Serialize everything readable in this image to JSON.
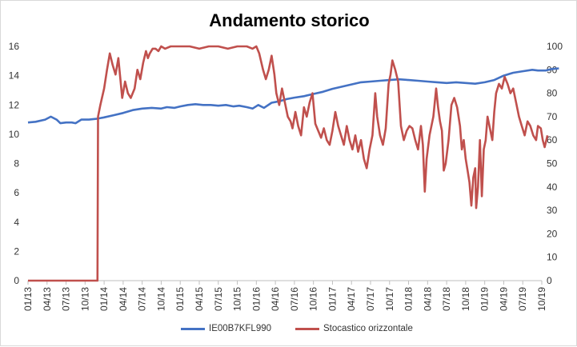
{
  "chart_data": {
    "type": "line",
    "title": "Andamento storico",
    "x": [
      "01/13",
      "04/13",
      "07/13",
      "10/13",
      "01/14",
      "04/14",
      "07/14",
      "10/14",
      "01/15",
      "04/15",
      "07/15",
      "10/15",
      "01/16",
      "04/16",
      "07/16",
      "10/16",
      "01/17",
      "04/17",
      "07/17",
      "10/17",
      "01/18",
      "04/18",
      "07/18",
      "10/18",
      "01/19",
      "04/19",
      "07/19",
      "10/19"
    ],
    "y_left_lim": [
      0,
      16
    ],
    "y_left_ticks": [
      "0",
      "2",
      "4",
      "6",
      "8",
      "10",
      "12",
      "14",
      "16"
    ],
    "y_right_lim": [
      0,
      100
    ],
    "y_right_ticks": [
      "0",
      "10",
      "20",
      "30",
      "40",
      "50",
      "60",
      "70",
      "80",
      "90",
      "100"
    ],
    "grid": false,
    "legend_position": "bottom",
    "series": [
      {
        "name": "IE00B7KFL990",
        "axis": "left",
        "color": "#4472c4",
        "points": [
          [
            0,
            10.8
          ],
          [
            0.4,
            10.85
          ],
          [
            0.9,
            11.0
          ],
          [
            1.2,
            11.2
          ],
          [
            1.5,
            11.0
          ],
          [
            1.7,
            10.75
          ],
          [
            2.0,
            10.8
          ],
          [
            2.3,
            10.8
          ],
          [
            2.5,
            10.75
          ],
          [
            2.8,
            11.0
          ],
          [
            3.2,
            11.0
          ],
          [
            3.6,
            11.05
          ],
          [
            4.0,
            11.15
          ],
          [
            4.5,
            11.3
          ],
          [
            5.0,
            11.45
          ],
          [
            5.5,
            11.65
          ],
          [
            6.0,
            11.75
          ],
          [
            6.5,
            11.8
          ],
          [
            7.0,
            11.75
          ],
          [
            7.3,
            11.85
          ],
          [
            7.7,
            11.8
          ],
          [
            8.0,
            11.9
          ],
          [
            8.4,
            12.0
          ],
          [
            8.8,
            12.05
          ],
          [
            9.2,
            12.0
          ],
          [
            9.6,
            12.0
          ],
          [
            10.0,
            11.95
          ],
          [
            10.4,
            12.0
          ],
          [
            10.8,
            11.9
          ],
          [
            11.1,
            11.95
          ],
          [
            11.5,
            11.85
          ],
          [
            11.8,
            11.75
          ],
          [
            12.1,
            12.0
          ],
          [
            12.4,
            11.8
          ],
          [
            12.8,
            12.15
          ],
          [
            13.2,
            12.25
          ],
          [
            13.6,
            12.4
          ],
          [
            14.0,
            12.5
          ],
          [
            14.5,
            12.6
          ],
          [
            15.0,
            12.75
          ],
          [
            15.5,
            12.9
          ],
          [
            16.0,
            13.1
          ],
          [
            16.5,
            13.25
          ],
          [
            17.0,
            13.4
          ],
          [
            17.5,
            13.55
          ],
          [
            18.0,
            13.6
          ],
          [
            18.5,
            13.65
          ],
          [
            19.0,
            13.7
          ],
          [
            19.5,
            13.75
          ],
          [
            20.0,
            13.7
          ],
          [
            20.5,
            13.65
          ],
          [
            21.0,
            13.6
          ],
          [
            21.5,
            13.55
          ],
          [
            22.0,
            13.5
          ],
          [
            22.5,
            13.55
          ],
          [
            23.0,
            13.5
          ],
          [
            23.5,
            13.45
          ],
          [
            24.0,
            13.55
          ],
          [
            24.5,
            13.7
          ],
          [
            25.0,
            14.0
          ],
          [
            25.5,
            14.2
          ],
          [
            26.0,
            14.3
          ],
          [
            26.5,
            14.4
          ],
          [
            26.8,
            14.35
          ],
          [
            27.2,
            14.35
          ],
          [
            27.5,
            14.45
          ],
          [
            27.9,
            14.5
          ]
        ]
      },
      {
        "name": "Stocastico orizzontale",
        "axis": "right",
        "color": "#c0504d",
        "points": [
          [
            0,
            0
          ],
          [
            3.65,
            0
          ],
          [
            3.68,
            70
          ],
          [
            3.8,
            75
          ],
          [
            4.0,
            82
          ],
          [
            4.15,
            90
          ],
          [
            4.3,
            97
          ],
          [
            4.45,
            92
          ],
          [
            4.6,
            88
          ],
          [
            4.75,
            95
          ],
          [
            4.95,
            78
          ],
          [
            5.1,
            85
          ],
          [
            5.25,
            80
          ],
          [
            5.4,
            78
          ],
          [
            5.6,
            82
          ],
          [
            5.75,
            90
          ],
          [
            5.9,
            86
          ],
          [
            6.05,
            93
          ],
          [
            6.2,
            98
          ],
          [
            6.3,
            95
          ],
          [
            6.4,
            97
          ],
          [
            6.55,
            99
          ],
          [
            6.7,
            99
          ],
          [
            6.85,
            98
          ],
          [
            7.0,
            100
          ],
          [
            7.2,
            99
          ],
          [
            7.5,
            100
          ],
          [
            8.0,
            100
          ],
          [
            8.5,
            100
          ],
          [
            9.0,
            99
          ],
          [
            9.5,
            100
          ],
          [
            10.0,
            100
          ],
          [
            10.5,
            99
          ],
          [
            11.0,
            100
          ],
          [
            11.5,
            100
          ],
          [
            11.8,
            99
          ],
          [
            12.0,
            100
          ],
          [
            12.15,
            97
          ],
          [
            12.35,
            90
          ],
          [
            12.5,
            86
          ],
          [
            12.65,
            90
          ],
          [
            12.8,
            96
          ],
          [
            12.95,
            88
          ],
          [
            13.05,
            80
          ],
          [
            13.2,
            75
          ],
          [
            13.35,
            82
          ],
          [
            13.5,
            76
          ],
          [
            13.65,
            70
          ],
          [
            13.8,
            68
          ],
          [
            13.9,
            65
          ],
          [
            14.05,
            72
          ],
          [
            14.2,
            66
          ],
          [
            14.35,
            62
          ],
          [
            14.5,
            74
          ],
          [
            14.65,
            70
          ],
          [
            14.8,
            76
          ],
          [
            14.95,
            80
          ],
          [
            15.1,
            67
          ],
          [
            15.25,
            64
          ],
          [
            15.4,
            61
          ],
          [
            15.55,
            65
          ],
          [
            15.7,
            60
          ],
          [
            15.85,
            58
          ],
          [
            16.0,
            64
          ],
          [
            16.15,
            72
          ],
          [
            16.3,
            66
          ],
          [
            16.45,
            62
          ],
          [
            16.6,
            58
          ],
          [
            16.75,
            66
          ],
          [
            16.9,
            60
          ],
          [
            17.05,
            56
          ],
          [
            17.2,
            62
          ],
          [
            17.35,
            55
          ],
          [
            17.5,
            60
          ],
          [
            17.65,
            52
          ],
          [
            17.8,
            48
          ],
          [
            17.95,
            56
          ],
          [
            18.1,
            62
          ],
          [
            18.25,
            80
          ],
          [
            18.35,
            70
          ],
          [
            18.5,
            62
          ],
          [
            18.65,
            58
          ],
          [
            18.8,
            65
          ],
          [
            18.95,
            84
          ],
          [
            19.05,
            88
          ],
          [
            19.15,
            94
          ],
          [
            19.3,
            90
          ],
          [
            19.45,
            85
          ],
          [
            19.6,
            66
          ],
          [
            19.75,
            60
          ],
          [
            19.9,
            64
          ],
          [
            20.05,
            66
          ],
          [
            20.2,
            65
          ],
          [
            20.35,
            60
          ],
          [
            20.5,
            56
          ],
          [
            20.65,
            66
          ],
          [
            20.75,
            58
          ],
          [
            20.85,
            38
          ],
          [
            20.95,
            52
          ],
          [
            21.1,
            62
          ],
          [
            21.3,
            70
          ],
          [
            21.45,
            82
          ],
          [
            21.55,
            74
          ],
          [
            21.65,
            68
          ],
          [
            21.75,
            64
          ],
          [
            21.85,
            47
          ],
          [
            21.95,
            50
          ],
          [
            22.1,
            60
          ],
          [
            22.25,
            75
          ],
          [
            22.4,
            78
          ],
          [
            22.55,
            74
          ],
          [
            22.7,
            66
          ],
          [
            22.8,
            56
          ],
          [
            22.9,
            60
          ],
          [
            23.0,
            52
          ],
          [
            23.1,
            47
          ],
          [
            23.2,
            42
          ],
          [
            23.3,
            32
          ],
          [
            23.4,
            44
          ],
          [
            23.5,
            48
          ],
          [
            23.55,
            31
          ],
          [
            23.65,
            40
          ],
          [
            23.75,
            60
          ],
          [
            23.85,
            36
          ],
          [
            23.95,
            56
          ],
          [
            24.05,
            60
          ],
          [
            24.15,
            70
          ],
          [
            24.3,
            64
          ],
          [
            24.4,
            60
          ],
          [
            24.5,
            72
          ],
          [
            24.6,
            80
          ],
          [
            24.75,
            84
          ],
          [
            24.9,
            82
          ],
          [
            25.05,
            87
          ],
          [
            25.2,
            84
          ],
          [
            25.35,
            80
          ],
          [
            25.5,
            82
          ],
          [
            25.65,
            76
          ],
          [
            25.8,
            70
          ],
          [
            25.95,
            66
          ],
          [
            26.1,
            62
          ],
          [
            26.25,
            68
          ],
          [
            26.4,
            66
          ],
          [
            26.55,
            62
          ],
          [
            26.7,
            60
          ],
          [
            26.8,
            66
          ],
          [
            26.95,
            65
          ],
          [
            27.05,
            60
          ],
          [
            27.15,
            57
          ],
          [
            27.3,
            62
          ]
        ]
      }
    ]
  }
}
